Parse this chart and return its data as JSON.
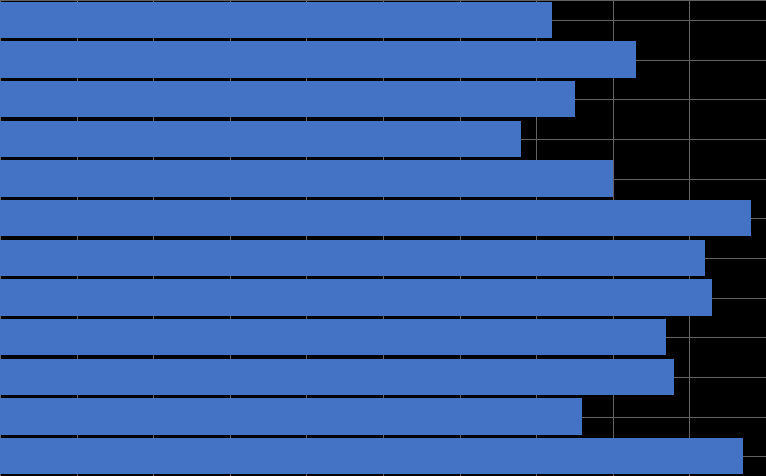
{
  "values": [
    72,
    83,
    75,
    68,
    80,
    98,
    92,
    93,
    87,
    88,
    76,
    97
  ],
  "bar_color": "#4472C4",
  "background_color": "#000000",
  "grid_color": "#666666",
  "xlim": [
    0,
    100
  ],
  "bar_height": 0.92,
  "figsize": [
    7.66,
    4.76
  ],
  "dpi": 100,
  "n_bars": 12
}
